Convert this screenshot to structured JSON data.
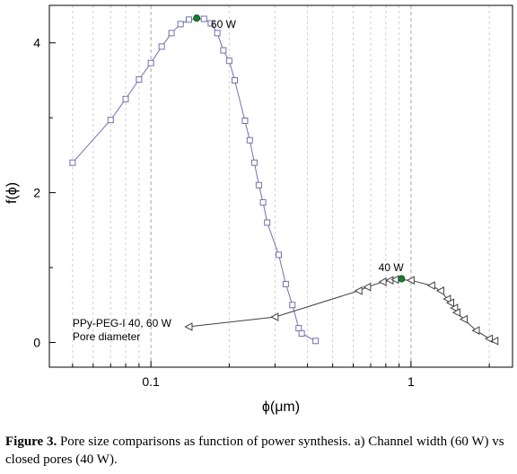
{
  "chart_data": {
    "type": "scatter",
    "x_scale": "log",
    "xlabel": "ϕ(μm)",
    "ylabel": "f(ϕ)",
    "xlim": [
      0.0407,
      2.457
    ],
    "ylim": [
      -0.33,
      4.5
    ],
    "x_ticks": [
      0.1,
      1
    ],
    "x_tick_labels": [
      "0.1",
      "1"
    ],
    "y_ticks": [
      0,
      2,
      4
    ],
    "y_tick_labels": [
      "0",
      "2",
      "4"
    ],
    "grid": "vertical dashed gridlines at minor log ticks",
    "series": [
      {
        "name": "60 W",
        "marker": "square",
        "color": "#7070b0",
        "peak": {
          "x": 0.15,
          "y": 4.33
        },
        "points": [
          [
            0.05,
            2.4
          ],
          [
            0.07,
            2.97
          ],
          [
            0.08,
            3.25
          ],
          [
            0.09,
            3.51
          ],
          [
            0.1,
            3.73
          ],
          [
            0.11,
            3.95
          ],
          [
            0.12,
            4.13
          ],
          [
            0.13,
            4.25
          ],
          [
            0.14,
            4.31
          ],
          [
            0.16,
            4.32
          ],
          [
            0.17,
            4.26
          ],
          [
            0.18,
            4.13
          ],
          [
            0.19,
            3.9
          ],
          [
            0.2,
            3.76
          ],
          [
            0.21,
            3.5
          ],
          [
            0.23,
            2.96
          ],
          [
            0.24,
            2.7
          ],
          [
            0.25,
            2.4
          ],
          [
            0.26,
            2.1
          ],
          [
            0.27,
            1.87
          ],
          [
            0.28,
            1.6
          ],
          [
            0.31,
            1.17
          ],
          [
            0.33,
            0.78
          ],
          [
            0.35,
            0.5
          ],
          [
            0.37,
            0.19
          ],
          [
            0.38,
            0.12
          ],
          [
            0.43,
            0.02
          ]
        ]
      },
      {
        "name": "40 W",
        "marker": "triangle-left",
        "color": "#404040",
        "peak": {
          "x": 0.92,
          "y": 0.85
        },
        "points": [
          [
            0.14,
            0.21
          ],
          [
            0.3,
            0.34
          ],
          [
            0.63,
            0.69
          ],
          [
            0.68,
            0.74
          ],
          [
            0.78,
            0.81
          ],
          [
            0.83,
            0.83
          ],
          [
            0.87,
            0.84
          ],
          [
            1.0,
            0.83
          ],
          [
            1.2,
            0.76
          ],
          [
            1.3,
            0.69
          ],
          [
            1.38,
            0.58
          ],
          [
            1.42,
            0.53
          ],
          [
            1.47,
            0.46
          ],
          [
            1.5,
            0.4
          ],
          [
            1.6,
            0.31
          ],
          [
            1.78,
            0.16
          ],
          [
            2.0,
            0.05
          ],
          [
            2.1,
            0.02
          ]
        ]
      }
    ],
    "annotations": [
      {
        "text": "60 W",
        "x": 0.17,
        "y": 4.25
      },
      {
        "text": "40 W",
        "x": 0.75,
        "y": 1.0
      },
      {
        "text": "PPy-PEG-I 40, 60 W",
        "x": 0.05,
        "y": 0.26
      },
      {
        "text": "Pore diameter",
        "x": 0.05,
        "y": 0.08
      }
    ]
  },
  "caption": {
    "label": "Figure 3.",
    "text": " Pore size comparisons as function of power synthesis. a) Channel width (60 W) vs closed pores (40 W)."
  }
}
